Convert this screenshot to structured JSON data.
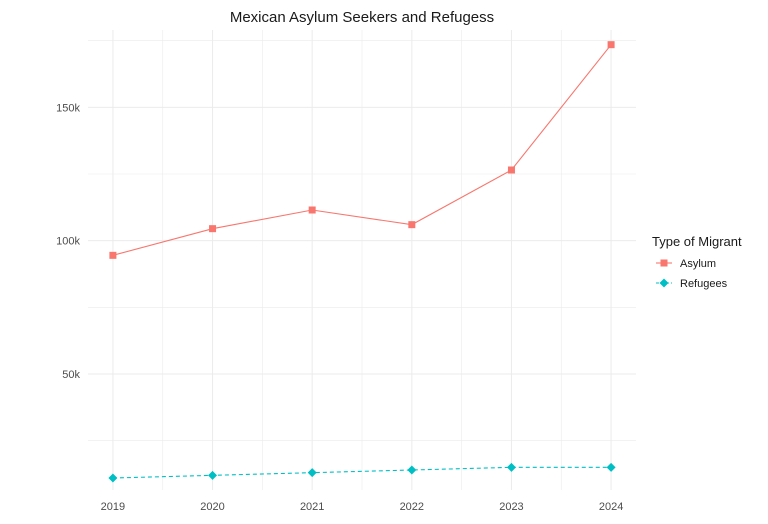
{
  "chart_data": {
    "type": "line",
    "title": "Mexican Asylum Seekers and Refugess",
    "xlabel": "",
    "ylabel": "",
    "x": [
      2019,
      2020,
      2021,
      2022,
      2023,
      2024
    ],
    "x_tick_labels": [
      "2019",
      "2020",
      "2021",
      "2022",
      "2023",
      "2024"
    ],
    "y_ticks": [
      50000,
      100000,
      150000
    ],
    "y_tick_labels": [
      "50k",
      "100k",
      "150k"
    ],
    "ylim": [
      6500,
      179000
    ],
    "grid": true,
    "legend": {
      "title": "Type of Migrant",
      "position": "right"
    },
    "series": [
      {
        "name": "Asylum",
        "color": "#F8766D",
        "marker": "square",
        "line_style": "solid",
        "values": [
          94500,
          104500,
          111500,
          106000,
          126500,
          173500
        ]
      },
      {
        "name": "Refugees",
        "color": "#00BFC4",
        "marker": "diamond",
        "line_style": "dashed",
        "values": [
          11000,
          12000,
          13000,
          14000,
          15000,
          15000
        ]
      }
    ]
  }
}
